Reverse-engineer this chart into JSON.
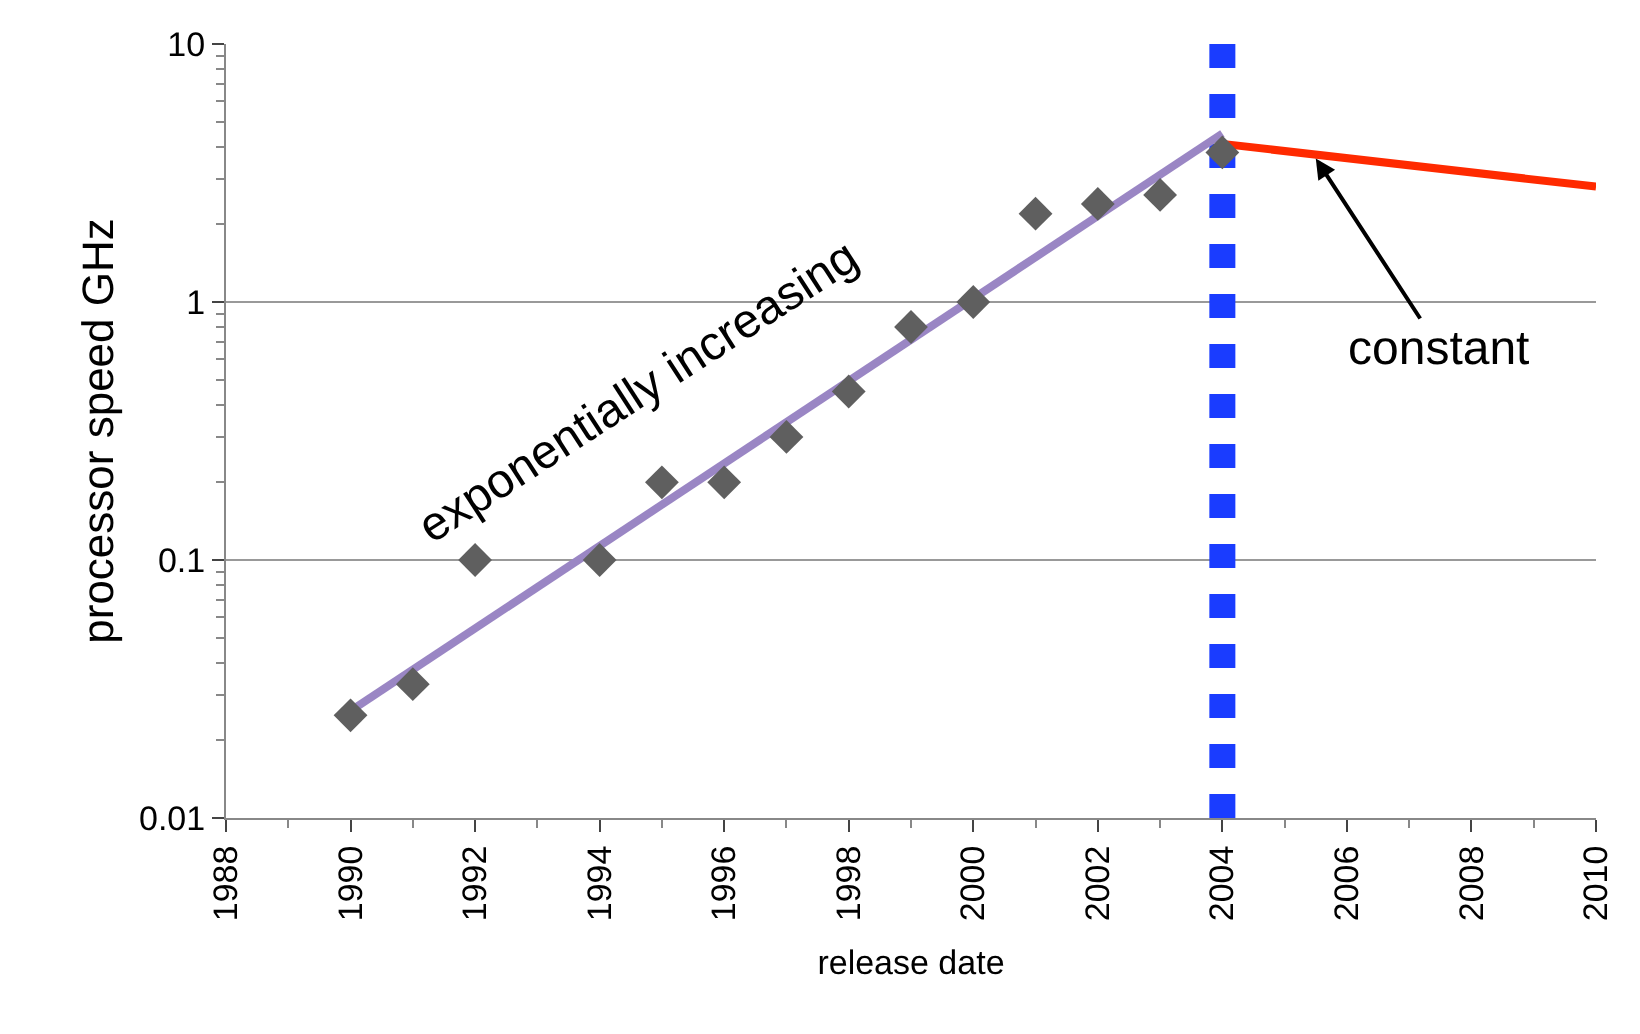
{
  "chart_data": {
    "type": "scatter",
    "xlabel": "release date",
    "ylabel": "processor speed GHz",
    "log": "y",
    "grid": "y",
    "xlim": [
      1988,
      2010
    ],
    "xticks": [
      1988,
      1990,
      1992,
      1994,
      1996,
      1998,
      2000,
      2002,
      2004,
      2006,
      2008,
      2010
    ],
    "ylim": [
      0.01,
      10
    ],
    "yticks": [
      0.01,
      0.1,
      1,
      10
    ],
    "series": [
      {
        "type": "line",
        "color": "#9a86c4",
        "marker": "none",
        "x": [
          1990,
          2004
        ],
        "values": [
          0.026,
          4.5
        ]
      },
      {
        "type": "line",
        "color": "#ff2a00",
        "marker": "none",
        "x": [
          2004,
          2010
        ],
        "values": [
          4.1,
          2.8
        ]
      },
      {
        "color": "#5f5f5f",
        "marker": "diamond",
        "x": [
          1990,
          1991,
          1992,
          1994,
          1995,
          1996,
          1997,
          1998,
          1999,
          2000,
          2001,
          2002,
          2003,
          2004
        ],
        "values": [
          0.025,
          0.033,
          0.1,
          0.1,
          0.2,
          0.2,
          0.3,
          0.45,
          0.8,
          1.0,
          2.2,
          2.4,
          2.6,
          3.8
        ]
      }
    ],
    "ref_lines": [
      {
        "axis": "x",
        "value": 2004,
        "color": "#1a3cff",
        "line_style": "dashed"
      }
    ],
    "annotations": [
      "exponentially increasing",
      {
        "text": "constant",
        "x": 2005.5,
        "y": 3.6
      }
    ]
  }
}
